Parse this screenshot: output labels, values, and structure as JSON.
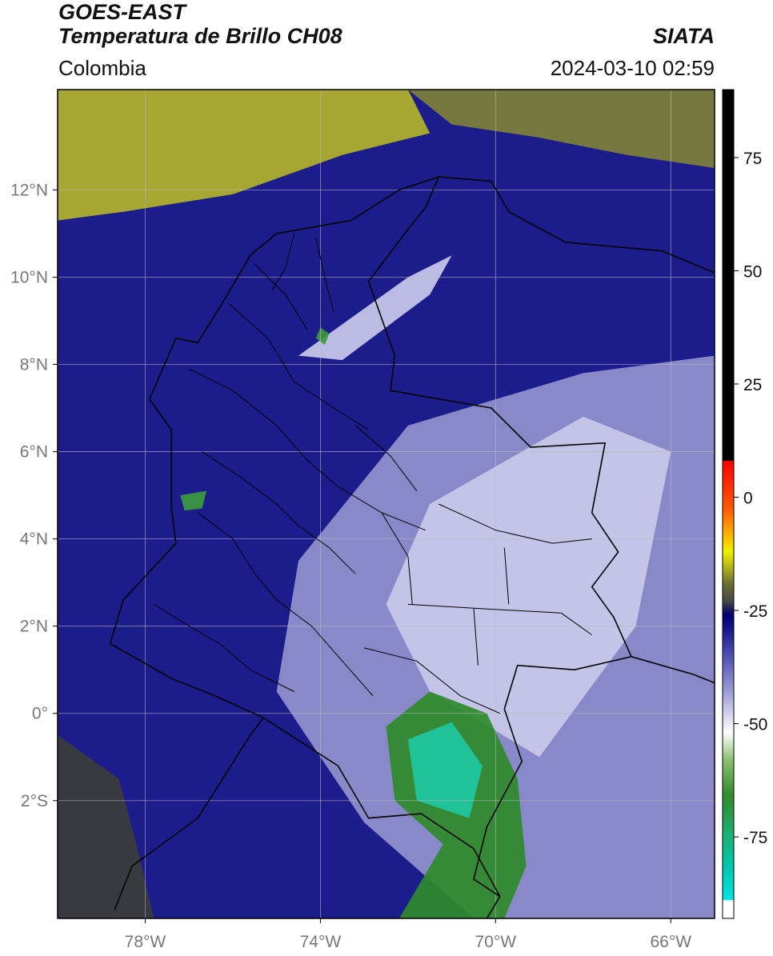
{
  "header": {
    "line1": "GOES-EAST",
    "line2": "Temperatura de Brillo CH08",
    "region": "Colombia",
    "agency": "SIATA",
    "timestamp": "2024-03-10 02:59"
  },
  "axes": {
    "lon_min": -80,
    "lon_max": -65,
    "lat_min": -4.7,
    "lat_max": 14.3,
    "x_ticks": [
      {
        "value": -78,
        "label": "78°W"
      },
      {
        "value": -74,
        "label": "74°W"
      },
      {
        "value": -70,
        "label": "70°W"
      },
      {
        "value": -66,
        "label": "66°W"
      }
    ],
    "y_ticks": [
      {
        "value": 12,
        "label": "12°N"
      },
      {
        "value": 10,
        "label": "10°N"
      },
      {
        "value": 8,
        "label": "8°N"
      },
      {
        "value": 6,
        "label": "6°N"
      },
      {
        "value": 4,
        "label": "4°N"
      },
      {
        "value": 2,
        "label": "2°N"
      },
      {
        "value": 0,
        "label": "0°"
      },
      {
        "value": -2,
        "label": "2°S"
      }
    ]
  },
  "colorbar": {
    "min": -93,
    "max": 90,
    "ticks": [
      {
        "value": 75,
        "label": "75"
      },
      {
        "value": 50,
        "label": "50"
      },
      {
        "value": 25,
        "label": "25"
      },
      {
        "value": 0,
        "label": "0"
      },
      {
        "value": -25,
        "label": "-25"
      },
      {
        "value": -50,
        "label": "-50"
      },
      {
        "value": -75,
        "label": "-75"
      }
    ],
    "stops": [
      {
        "value": -93,
        "color": "#ffffff"
      },
      {
        "value": -89,
        "color": "#ffffff"
      },
      {
        "value": -88.9,
        "color": "#00e5e5"
      },
      {
        "value": -82,
        "color": "#00c8b0"
      },
      {
        "value": -74,
        "color": "#1fae70"
      },
      {
        "value": -66,
        "color": "#2f8a2a"
      },
      {
        "value": -58,
        "color": "#8cc070"
      },
      {
        "value": -52,
        "color": "#ffffff"
      },
      {
        "value": -44,
        "color": "#a8a8dc"
      },
      {
        "value": -36,
        "color": "#5a5ab8"
      },
      {
        "value": -29,
        "color": "#16168c"
      },
      {
        "value": -26,
        "color": "#000070"
      },
      {
        "value": -23,
        "color": "#454545"
      },
      {
        "value": -19,
        "color": "#707030"
      },
      {
        "value": -16,
        "color": "#a8a820"
      },
      {
        "value": -12,
        "color": "#f0f000"
      },
      {
        "value": -8,
        "color": "#ffb000"
      },
      {
        "value": -3,
        "color": "#ff6000"
      },
      {
        "value": 4,
        "color": "#ff2000"
      },
      {
        "value": 8,
        "color": "#ff0000"
      },
      {
        "value": 8.1,
        "color": "#000000"
      },
      {
        "value": 90,
        "color": "#000000"
      }
    ]
  },
  "field": {
    "background": "#1c1c8c",
    "regions": [
      {
        "name": "dry-caribbean-north",
        "color": "#b2b22a",
        "coords": [
          [
            -80,
            14.3
          ],
          [
            -72,
            14.3
          ],
          [
            -71.5,
            13.3
          ],
          [
            -73.5,
            12.8
          ],
          [
            -76,
            11.9
          ],
          [
            -78.5,
            11.5
          ],
          [
            -80,
            11.3
          ]
        ]
      },
      {
        "name": "dry-caribbean-mid",
        "color": "#7f7f3a",
        "coords": [
          [
            -72,
            14.3
          ],
          [
            -65,
            14.3
          ],
          [
            -65,
            12.5
          ],
          [
            -67,
            12.8
          ],
          [
            -69,
            13.2
          ],
          [
            -71,
            13.5
          ]
        ]
      },
      {
        "name": "dry-pacific-sw",
        "color": "#3c3c3c",
        "coords": [
          [
            -80,
            -0.5
          ],
          [
            -78.6,
            -1.5
          ],
          [
            -78.2,
            -3
          ],
          [
            -77.8,
            -4.7
          ],
          [
            -80,
            -4.7
          ]
        ]
      },
      {
        "name": "cloud-light-east",
        "color": "#9393cf",
        "coords": [
          [
            -74.5,
            3.5
          ],
          [
            -72,
            6.6
          ],
          [
            -68,
            7.8
          ],
          [
            -65,
            8.2
          ],
          [
            -65,
            -4.7
          ],
          [
            -70.5,
            -4.7
          ],
          [
            -73,
            -2.5
          ],
          [
            -75,
            0.5
          ]
        ]
      },
      {
        "name": "cloud-pale-east",
        "color": "#c9c9ea",
        "coords": [
          [
            -71.5,
            4.8
          ],
          [
            -68,
            6.8
          ],
          [
            -66,
            6
          ],
          [
            -66.8,
            2
          ],
          [
            -69,
            -1
          ],
          [
            -71.5,
            0.5
          ],
          [
            -72.5,
            2.5
          ]
        ]
      },
      {
        "name": "convective-amazon",
        "color": "#2f8a2a",
        "coords": [
          [
            -72.5,
            -0.3
          ],
          [
            -71.5,
            0.5
          ],
          [
            -70.2,
            0
          ],
          [
            -69.5,
            -1.5
          ],
          [
            -69.3,
            -3.5
          ],
          [
            -69.8,
            -4.7
          ],
          [
            -72.2,
            -4.7
          ],
          [
            -71.2,
            -3
          ],
          [
            -72.3,
            -2
          ]
        ]
      },
      {
        "name": "convective-core",
        "color": "#1ec8a0",
        "coords": [
          [
            -72,
            -0.6
          ],
          [
            -71,
            -0.2
          ],
          [
            -70.3,
            -1.2
          ],
          [
            -70.6,
            -2.4
          ],
          [
            -71.8,
            -2
          ]
        ]
      },
      {
        "name": "cloud-band-caribbean",
        "color": "#c9c9ea",
        "coords": [
          [
            -74.5,
            8.2
          ],
          [
            -72,
            10
          ],
          [
            -71,
            10.5
          ],
          [
            -71.5,
            9.6
          ],
          [
            -73.5,
            8.1
          ]
        ]
      },
      {
        "name": "storm-cell-north",
        "color": "#3d9b3d",
        "coords": [
          [
            -74.0,
            8.85
          ],
          [
            -73.8,
            8.7
          ],
          [
            -73.9,
            8.45
          ],
          [
            -74.1,
            8.6
          ]
        ]
      },
      {
        "name": "storm-cell-choco",
        "color": "#3d9b3d",
        "coords": [
          [
            -77.2,
            5.0
          ],
          [
            -76.6,
            5.1
          ],
          [
            -76.7,
            4.7
          ],
          [
            -77.1,
            4.65
          ]
        ]
      }
    ]
  },
  "borders": [
    {
      "name": "colombia-outline",
      "coords": [
        [
          -77.9,
          7.2
        ],
        [
          -77.3,
          8.6
        ],
        [
          -76.8,
          8.5
        ],
        [
          -76.3,
          9.3
        ],
        [
          -75.6,
          10.5
        ],
        [
          -75.0,
          11.0
        ],
        [
          -73.3,
          11.3
        ],
        [
          -72.2,
          12.0
        ],
        [
          -71.3,
          12.3
        ],
        [
          -71.6,
          11.6
        ],
        [
          -72.0,
          11.1
        ],
        [
          -72.9,
          9.9
        ],
        [
          -72.3,
          8.2
        ],
        [
          -72.4,
          7.4
        ],
        [
          -70.1,
          7.0
        ],
        [
          -69.2,
          6.1
        ],
        [
          -67.5,
          6.2
        ],
        [
          -67.8,
          4.6
        ],
        [
          -67.2,
          3.7
        ],
        [
          -67.8,
          2.9
        ],
        [
          -67.3,
          2.2
        ],
        [
          -66.9,
          1.3
        ],
        [
          -68.2,
          1.0
        ],
        [
          -69.5,
          1.1
        ],
        [
          -69.8,
          0.1
        ],
        [
          -69.4,
          -1.1
        ],
        [
          -70.2,
          -2.6
        ],
        [
          -70.5,
          -3.8
        ],
        [
          -69.9,
          -4.2
        ],
        [
          -70.5,
          -3.1
        ],
        [
          -71.7,
          -2.3
        ],
        [
          -72.9,
          -2.4
        ],
        [
          -73.6,
          -1.2
        ],
        [
          -75.3,
          -0.1
        ],
        [
          -76.4,
          0.4
        ],
        [
          -77.4,
          0.8
        ],
        [
          -78.8,
          1.6
        ],
        [
          -78.5,
          2.6
        ],
        [
          -77.3,
          3.9
        ],
        [
          -77.4,
          4.7
        ],
        [
          -77.4,
          6.5
        ],
        [
          -77.9,
          7.2
        ]
      ]
    },
    {
      "name": "ecuador-peru",
      "coords": [
        [
          -75.3,
          -0.1
        ],
        [
          -75.6,
          -0.5
        ],
        [
          -76.8,
          -2.4
        ],
        [
          -78.3,
          -3.5
        ],
        [
          -78.7,
          -4.5
        ]
      ]
    },
    {
      "name": "venezuela-coast",
      "coords": [
        [
          -71.3,
          12.3
        ],
        [
          -70.1,
          12.2
        ],
        [
          -69.7,
          11.5
        ],
        [
          -68.4,
          10.8
        ],
        [
          -66.2,
          10.6
        ],
        [
          -65,
          10.1
        ]
      ]
    },
    {
      "name": "brazil-venezuela",
      "coords": [
        [
          -66.9,
          1.3
        ],
        [
          -65.5,
          0.9
        ],
        [
          -65,
          0.7
        ]
      ]
    },
    {
      "name": "peru-brazil",
      "coords": [
        [
          -69.9,
          -4.2
        ],
        [
          -70.2,
          -4.7
        ]
      ]
    }
  ],
  "admin_lines": [
    [
      [
        -76.1,
        9.4
      ],
      [
        -75.2,
        8.6
      ],
      [
        -74.6,
        7.6
      ],
      [
        -73.7,
        7.0
      ],
      [
        -72.9,
        6.5
      ]
    ],
    [
      [
        -75.5,
        10.3
      ],
      [
        -74.8,
        9.6
      ],
      [
        -74.3,
        8.8
      ]
    ],
    [
      [
        -77.0,
        7.9
      ],
      [
        -76.0,
        7.4
      ],
      [
        -75.0,
        6.6
      ],
      [
        -74.3,
        5.8
      ],
      [
        -73.6,
        5.2
      ],
      [
        -72.6,
        4.6
      ],
      [
        -71.6,
        4.2
      ]
    ],
    [
      [
        -76.7,
        6.0
      ],
      [
        -75.8,
        5.4
      ],
      [
        -75.0,
        4.8
      ],
      [
        -74.5,
        4.3
      ],
      [
        -73.8,
        3.8
      ],
      [
        -73.2,
        3.2
      ]
    ],
    [
      [
        -76.8,
        4.6
      ],
      [
        -76.0,
        4.0
      ],
      [
        -75.5,
        3.2
      ],
      [
        -75.0,
        2.6
      ],
      [
        -74.2,
        2.0
      ],
      [
        -73.5,
        1.2
      ],
      [
        -72.8,
        0.4
      ]
    ],
    [
      [
        -77.8,
        2.5
      ],
      [
        -77.0,
        2.0
      ],
      [
        -76.3,
        1.6
      ],
      [
        -75.6,
        1.0
      ],
      [
        -74.6,
        0.5
      ]
    ],
    [
      [
        -72.0,
        2.5
      ],
      [
        -70.3,
        2.4
      ],
      [
        -68.5,
        2.3
      ],
      [
        -67.8,
        1.8
      ]
    ],
    [
      [
        -71.3,
        4.8
      ],
      [
        -70.0,
        4.2
      ],
      [
        -68.7,
        3.9
      ],
      [
        -67.8,
        4.0
      ]
    ],
    [
      [
        -73.2,
        6.6
      ],
      [
        -72.4,
        5.9
      ],
      [
        -71.8,
        5.1
      ]
    ],
    [
      [
        -74.1,
        10.9
      ],
      [
        -73.9,
        10.0
      ],
      [
        -73.7,
        9.2
      ]
    ],
    [
      [
        -74.6,
        11.0
      ],
      [
        -74.8,
        10.2
      ],
      [
        -75.1,
        9.7
      ]
    ],
    [
      [
        -70.5,
        2.4
      ],
      [
        -70.4,
        1.1
      ]
    ],
    [
      [
        -73.0,
        1.5
      ],
      [
        -71.8,
        1.2
      ],
      [
        -70.8,
        0.4
      ],
      [
        -69.9,
        0.0
      ]
    ],
    [
      [
        -69.8,
        3.8
      ],
      [
        -69.7,
        2.5
      ]
    ],
    [
      [
        -72.6,
        4.6
      ],
      [
        -72.0,
        3.6
      ],
      [
        -71.9,
        2.5
      ]
    ]
  ]
}
